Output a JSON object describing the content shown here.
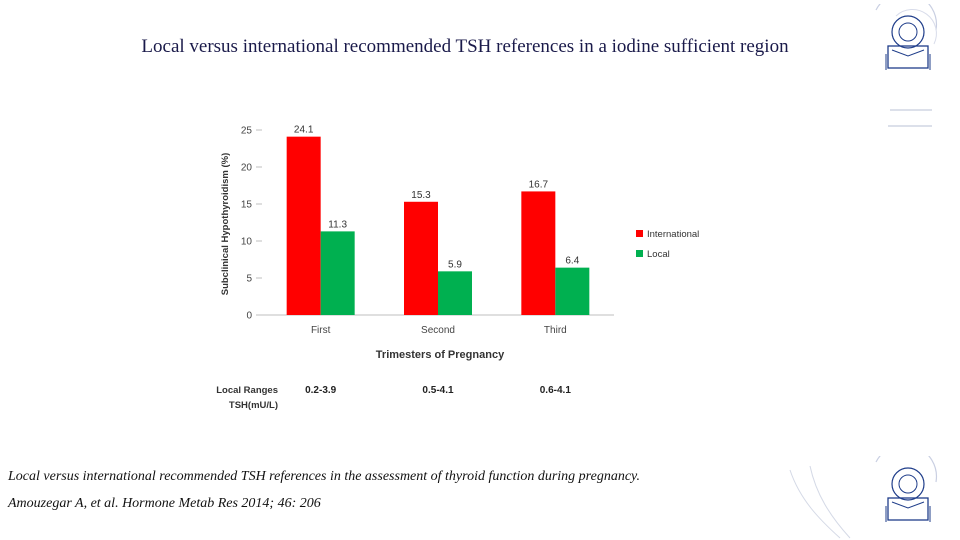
{
  "slide": {
    "title": "Local versus international recommended TSH references in a iodine sufficient region",
    "caption": "Local versus international recommended TSH references in the assessment of thyroid function during  pregnancy.",
    "citation": "Amouzegar A, et al. Hormone Metab Res 2014; 46: 206"
  },
  "logo": {
    "name": "university-seal-logo",
    "color": "#1f3d8a"
  },
  "chart_data": {
    "type": "bar",
    "categories": [
      "First",
      "Second",
      "Third"
    ],
    "series": [
      {
        "name": "International",
        "color": "#ff0000",
        "values": [
          24.1,
          15.3,
          16.7
        ],
        "labels": [
          "24.1",
          "15.3",
          "16.7"
        ]
      },
      {
        "name": "Local",
        "color": "#00b050",
        "values": [
          11.3,
          5.9,
          6.4
        ],
        "labels": [
          "11.3",
          "5.9",
          "6.4"
        ]
      }
    ],
    "xlabel": "Trimesters of Pregnancy",
    "ylabel": "Subclinical Hypothyroidism (%)",
    "ylim": [
      0,
      25
    ],
    "yticks": [
      "0",
      "5",
      "10",
      "15",
      "20",
      "25"
    ],
    "grid": false,
    "legend_position": "right",
    "table": {
      "row_label_1": "Local Ranges",
      "row_label_2": "TSH(mU/L)",
      "values": [
        "0.2-3.9",
        "0.5-4.1",
        "0.6-4.1"
      ]
    }
  }
}
